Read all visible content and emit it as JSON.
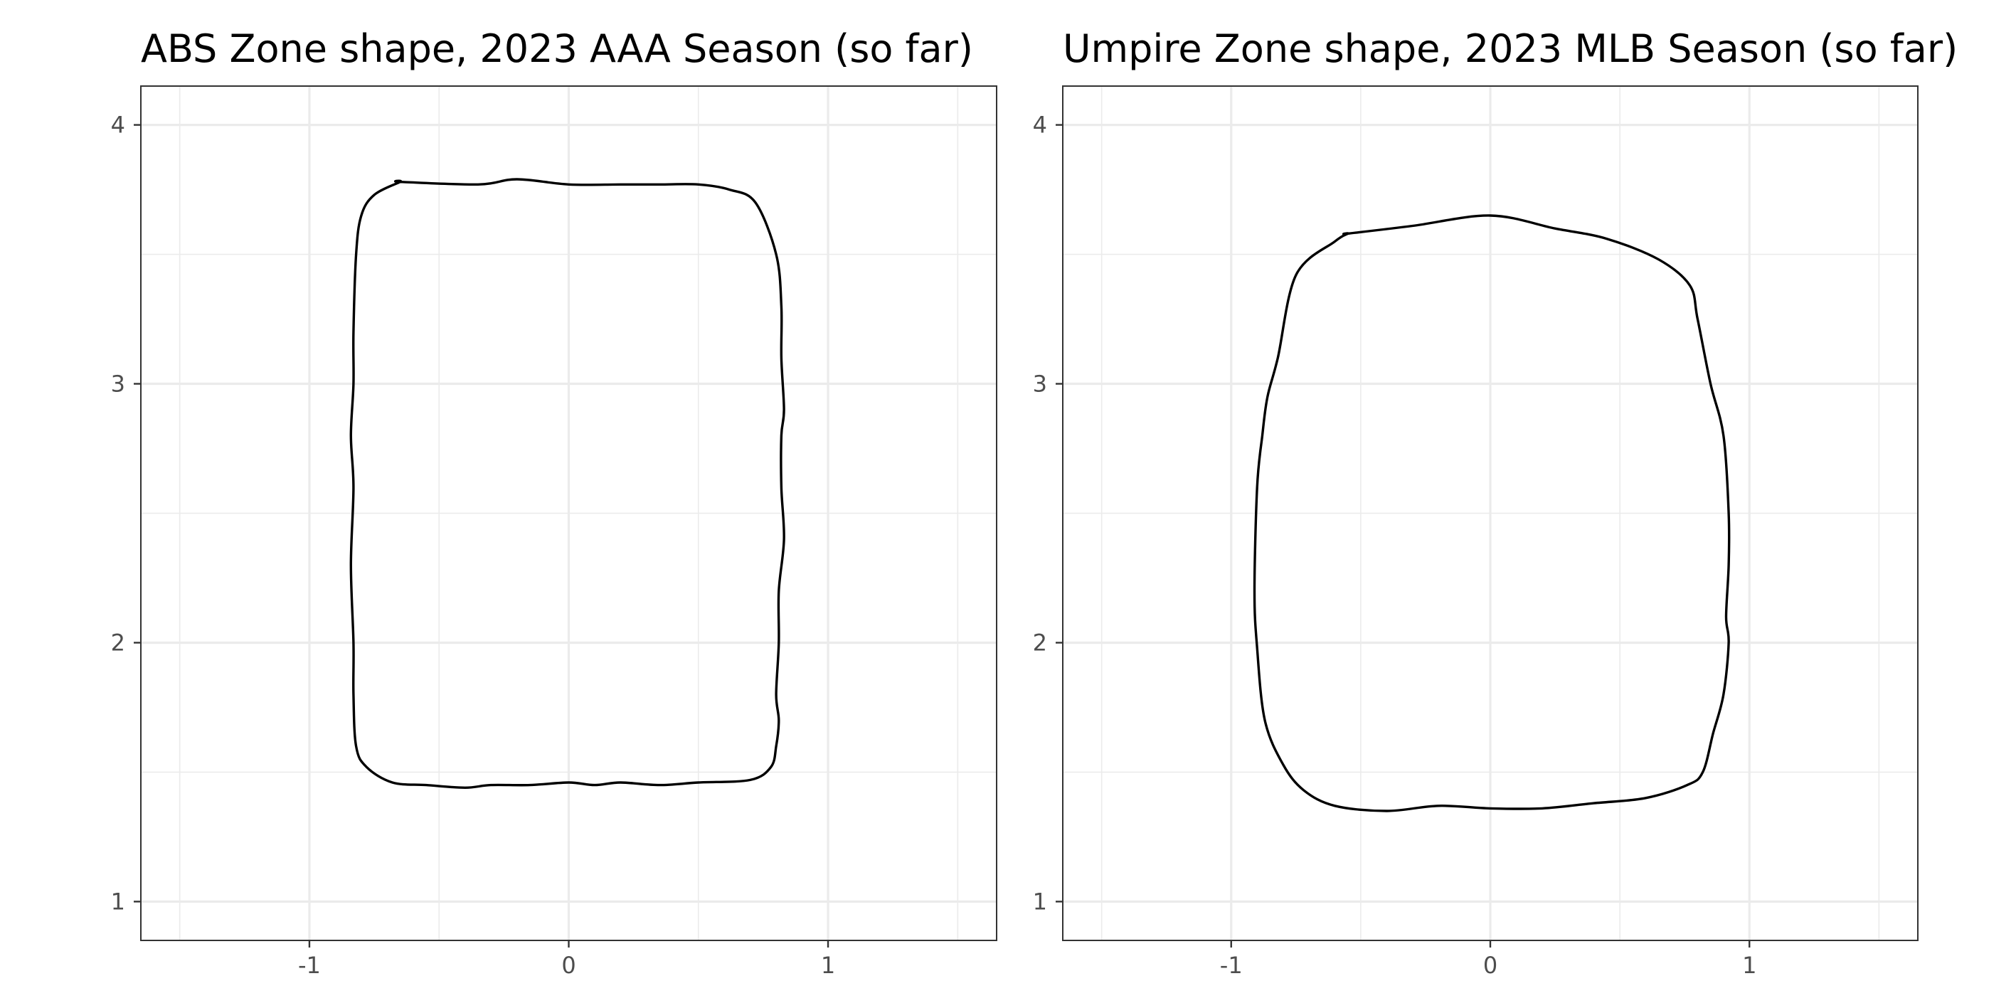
{
  "chart_data": [
    {
      "type": "line",
      "title": "ABS Zone shape, 2023 AAA Season (so far)",
      "xlabel": "",
      "ylabel": "",
      "xlim": [
        -1.65,
        1.65
      ],
      "ylim": [
        0.85,
        4.15
      ],
      "x_ticks": [
        -1,
        0,
        1
      ],
      "x_tick_labels": [
        "-1",
        "0",
        "1"
      ],
      "y_ticks": [
        1,
        2,
        3,
        4
      ],
      "y_tick_labels": [
        "1",
        "2",
        "3",
        "4"
      ],
      "grid": true,
      "legend": "none",
      "series": [
        {
          "color": "#000000",
          "x": [
            -0.65,
            -0.35,
            -0.2,
            0,
            0.2,
            0.35,
            0.5,
            0.62,
            0.72,
            0.8,
            0.82,
            0.82,
            0.83,
            0.82,
            0.82,
            0.83,
            0.81,
            0.81,
            0.8,
            0.81,
            0.8,
            0.78,
            0.7,
            0.5,
            0.35,
            0.2,
            0.1,
            0,
            -0.15,
            -0.3,
            -0.4,
            -0.55,
            -0.68,
            -0.78,
            -0.82,
            -0.83,
            -0.83,
            -0.84,
            -0.83,
            -0.84,
            -0.83,
            -0.83,
            -0.82,
            -0.8,
            -0.75,
            -0.65
          ],
          "y": [
            3.78,
            3.77,
            3.79,
            3.77,
            3.77,
            3.77,
            3.77,
            3.75,
            3.7,
            3.5,
            3.3,
            3.1,
            2.9,
            2.8,
            2.6,
            2.4,
            2.2,
            2.0,
            1.8,
            1.7,
            1.6,
            1.52,
            1.47,
            1.46,
            1.45,
            1.46,
            1.45,
            1.46,
            1.45,
            1.45,
            1.44,
            1.45,
            1.46,
            1.52,
            1.6,
            1.8,
            2.0,
            2.3,
            2.6,
            2.8,
            3.0,
            3.2,
            3.5,
            3.65,
            3.73,
            3.78
          ]
        }
      ]
    },
    {
      "type": "line",
      "title": "Umpire Zone shape, 2023 MLB Season (so far)",
      "xlabel": "",
      "ylabel": "",
      "xlim": [
        -1.65,
        1.65
      ],
      "ylim": [
        0.85,
        4.15
      ],
      "x_ticks": [
        -1,
        0,
        1
      ],
      "x_tick_labels": [
        "-1",
        "0",
        "1"
      ],
      "y_ticks": [
        1,
        2,
        3,
        4
      ],
      "y_tick_labels": [
        "1",
        "2",
        "3",
        "4"
      ],
      "grid": true,
      "legend": "none",
      "series": [
        {
          "color": "#000000",
          "x": [
            -0.55,
            -0.3,
            0,
            0.25,
            0.45,
            0.65,
            0.77,
            0.8,
            0.85,
            0.9,
            0.92,
            0.92,
            0.91,
            0.92,
            0.9,
            0.86,
            0.82,
            0.76,
            0.6,
            0.4,
            0.2,
            0,
            -0.2,
            -0.4,
            -0.6,
            -0.72,
            -0.8,
            -0.87,
            -0.9,
            -0.91,
            -0.9,
            -0.88,
            -0.86,
            -0.82,
            -0.75,
            -0.6,
            -0.55
          ],
          "y": [
            3.58,
            3.61,
            3.65,
            3.6,
            3.56,
            3.48,
            3.38,
            3.25,
            3.0,
            2.8,
            2.5,
            2.3,
            2.1,
            2.0,
            1.8,
            1.65,
            1.5,
            1.45,
            1.4,
            1.38,
            1.36,
            1.36,
            1.37,
            1.35,
            1.37,
            1.43,
            1.53,
            1.7,
            1.98,
            2.2,
            2.6,
            2.8,
            2.95,
            3.1,
            3.42,
            3.55,
            3.58
          ]
        }
      ]
    }
  ]
}
